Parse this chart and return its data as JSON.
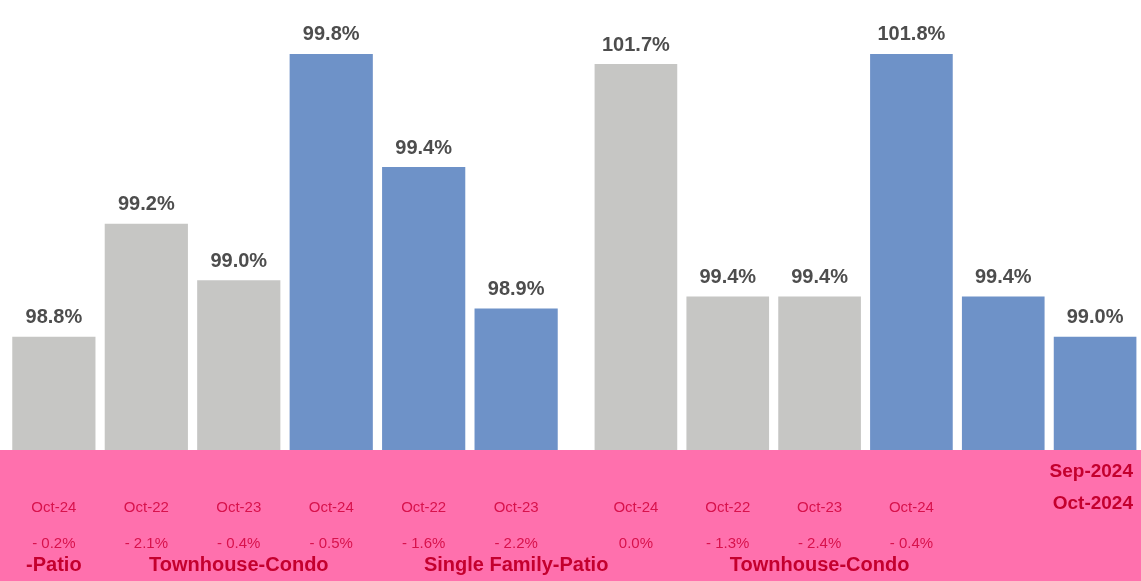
{
  "chart_data": [
    {
      "type": "bar",
      "categories": [
        "Oct-24\n- 0.2%",
        "Oct-22\n- 2.1%",
        "Oct-23\n- 0.4%",
        "Oct-24\n- 0.5%",
        "Oct-22\n- 1.6%",
        "Oct-23\n- 2.2%"
      ],
      "values": [
        98.8,
        99.2,
        99.0,
        99.8,
        99.4,
        98.9
      ],
      "colors": [
        "#c6c6c4",
        "#c6c6c4",
        "#c6c6c4",
        "#6e92c8",
        "#6e92c8",
        "#6e92c8"
      ],
      "value_labels": [
        "98.8%",
        "99.2%",
        "99.0%",
        "99.8%",
        "99.4%",
        "98.9%"
      ],
      "tick_labels": "x",
      "annotations": [
        "-Patio",
        "Townhouse-Condo",
        "Single Family-Patio"
      ]
    },
    {
      "type": "bar",
      "categories": [
        "Oct-24\n0.0%",
        "Oct-22\n- 1.3%",
        "Oct-23\n- 2.4%",
        "Oct-24\n- 0.4%",
        null,
        null
      ],
      "values": [
        101.7,
        99.4,
        99.4,
        101.8,
        99.4,
        99.0
      ],
      "colors": [
        "#c6c6c4",
        "#c6c6c4",
        "#c6c6c4",
        "#6e92c8",
        "#6e92c8",
        "#6e92c8"
      ],
      "value_labels": [
        "101.7%",
        "99.4%",
        "99.4%",
        "101.8%",
        "99.4%",
        "99.0%"
      ],
      "tick_labels": "x",
      "annotations": [
        "Townhouse-Condo",
        "Sep-2024",
        "Oct-2024"
      ]
    }
  ]
}
